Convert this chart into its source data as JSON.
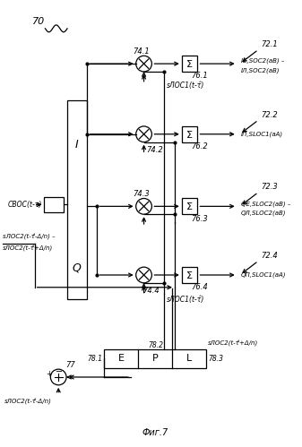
{
  "bg_color": "#ffffff",
  "fig_label": "70",
  "cboc_label": "CBOC(t-τ)",
  "I_label": "I",
  "Q_label": "Q",
  "mult_labels": [
    "74.1",
    "74.2",
    "74.3",
    "74.4"
  ],
  "sum_labels": [
    "76.1",
    "76.2",
    "76.3",
    "76.4"
  ],
  "out_labels": [
    "72.1",
    "72.2",
    "72.3",
    "72.4"
  ],
  "out_text1a": "IЕ,SOC2(аB) –",
  "out_text1b": "IЛ,SOC2(аB)",
  "out_text2": "IП,SLOC1(аA)",
  "out_text3a": "QЕ,SLOC2(аB) –",
  "out_text3b": "QЛ,SLOC2(аB)",
  "out_text4": "QП,SLOC1(аA)",
  "sloc1_top": "sЛОC1(t-τ̂)",
  "sloc1_bot": "sЛОC1(t-τ̂)",
  "sloc2_diff_a": "sЛОC2(t-τ̂-Δ/n) –",
  "sloc2_diff_b": "sЛОC2(t-τ̂+Δ/n)",
  "sloc2_epl_top": "sЛОC2(t-τ̂+Δ/n)",
  "sloc2_adder": "sЛОC2(t-τ̂-Δ/n)",
  "sum77_label": "77",
  "epl_labels": [
    "E",
    "P",
    "L"
  ],
  "epl_num": "78.2",
  "epl_left": "78.1",
  "epl_right": "78.3",
  "fig_title": "Фиг.7"
}
